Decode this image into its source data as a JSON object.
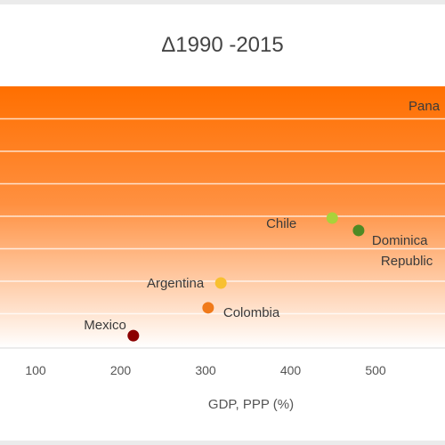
{
  "chart_data": {
    "type": "scatter",
    "title": "Δ1990 -2015",
    "xlabel": "GDP, PPP (%)",
    "ylabel": "",
    "xlim": [
      0,
      600
    ],
    "x_ticks": [
      "100",
      "200",
      "300",
      "400",
      "500"
    ],
    "grid": true,
    "legend": "none",
    "background_gradient": [
      "#ff6f00",
      "#ffffff"
    ],
    "points": [
      {
        "label": "Mexico",
        "x": 215,
        "y": 0.4,
        "color": "#8b0000"
      },
      {
        "label": "Colombia",
        "x": 303,
        "y": 1.3,
        "color": "#f07a1a"
      },
      {
        "label": "Argentina",
        "x": 318,
        "y": 2.1,
        "color": "#f8c030"
      },
      {
        "label": "Chile",
        "x": 449,
        "y": 4.2,
        "color": "#a9d23a"
      },
      {
        "label": "Dominica\nRepublic",
        "x": 480,
        "y": 3.8,
        "color": "#4e8a24"
      },
      {
        "label": "Pana",
        "x": 620,
        "y": 8.0,
        "color": "#ff6f00"
      }
    ]
  }
}
